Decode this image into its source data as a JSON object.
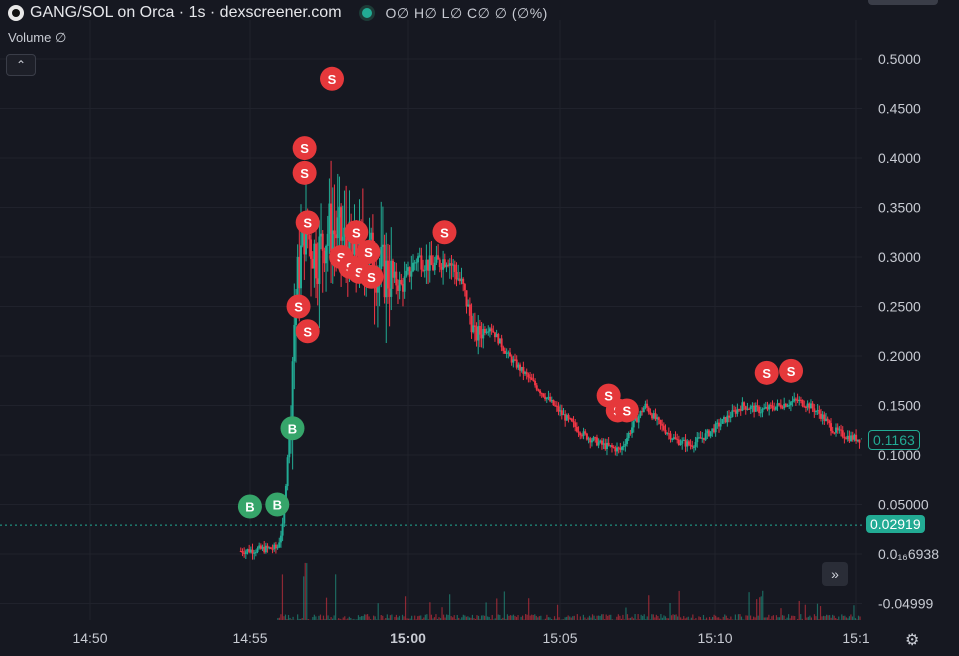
{
  "header": {
    "title": "GANG/SOL on Orca · 1s · dexscreener.com",
    "ohlc": "O∅ H∅ L∅ C∅ ∅ (∅%)"
  },
  "volume_label": "Volume ∅",
  "collapse_label": "⌃",
  "price_badges": {
    "last": "0.1163",
    "entry": "0.02919"
  },
  "nav_button": "»",
  "settings_icon": "⚙",
  "colors": {
    "up": "#22ab94",
    "down": "#f23645",
    "sell": "#e5383b",
    "buy": "#36a56a",
    "background": "#161821"
  },
  "chart_data": {
    "type": "candlestick",
    "y_ticks": [
      "0.5000",
      "0.4500",
      "0.4000",
      "0.3500",
      "0.3000",
      "0.2500",
      "0.2000",
      "0.1500",
      "0.1000",
      "0.05000",
      "0.0₁₆6938",
      "-0.04999"
    ],
    "y_tick_values": [
      0.5,
      0.45,
      0.4,
      0.35,
      0.3,
      0.25,
      0.2,
      0.15,
      0.1,
      0.05,
      0.0,
      -0.05
    ],
    "x_ticks": [
      "14:50",
      "14:55",
      "15:00",
      "15:05",
      "15:10",
      "15:1"
    ],
    "ylim": [
      -0.06,
      0.56
    ],
    "xlim_minutes": [
      -6.4,
      15.0
    ],
    "price_path": [
      {
        "t": -5.5,
        "p": 0.003
      },
      {
        "t": -4.8,
        "p": 0.005
      },
      {
        "t": -4.3,
        "p": 0.006
      },
      {
        "t": -4.1,
        "p": 0.03
      },
      {
        "t": -3.9,
        "p": 0.13
      },
      {
        "t": -3.7,
        "p": 0.26
      },
      {
        "t": -3.4,
        "p": 0.33
      },
      {
        "t": -3.0,
        "p": 0.3
      },
      {
        "t": -2.6,
        "p": 0.33
      },
      {
        "t": -2.2,
        "p": 0.32
      },
      {
        "t": -1.8,
        "p": 0.3
      },
      {
        "t": -1.4,
        "p": 0.31
      },
      {
        "t": -1.0,
        "p": 0.29
      },
      {
        "t": -0.6,
        "p": 0.28
      },
      {
        "t": -0.2,
        "p": 0.27
      },
      {
        "t": 0.3,
        "p": 0.3
      },
      {
        "t": 0.8,
        "p": 0.29
      },
      {
        "t": 1.3,
        "p": 0.3
      },
      {
        "t": 1.8,
        "p": 0.27
      },
      {
        "t": 2.2,
        "p": 0.22
      },
      {
        "t": 2.7,
        "p": 0.23
      },
      {
        "t": 3.3,
        "p": 0.2
      },
      {
        "t": 3.9,
        "p": 0.18
      },
      {
        "t": 4.5,
        "p": 0.16
      },
      {
        "t": 5.1,
        "p": 0.14
      },
      {
        "t": 5.8,
        "p": 0.12
      },
      {
        "t": 6.4,
        "p": 0.11
      },
      {
        "t": 7.0,
        "p": 0.105
      },
      {
        "t": 7.4,
        "p": 0.13
      },
      {
        "t": 7.8,
        "p": 0.15
      },
      {
        "t": 8.3,
        "p": 0.13
      },
      {
        "t": 8.8,
        "p": 0.115
      },
      {
        "t": 9.3,
        "p": 0.11
      },
      {
        "t": 9.8,
        "p": 0.12
      },
      {
        "t": 10.4,
        "p": 0.135
      },
      {
        "t": 11.0,
        "p": 0.15
      },
      {
        "t": 11.6,
        "p": 0.145
      },
      {
        "t": 12.2,
        "p": 0.15
      },
      {
        "t": 12.8,
        "p": 0.155
      },
      {
        "t": 13.2,
        "p": 0.15
      },
      {
        "t": 13.6,
        "p": 0.14
      },
      {
        "t": 14.0,
        "p": 0.125
      },
      {
        "t": 14.5,
        "p": 0.118
      },
      {
        "t": 14.9,
        "p": 0.116
      }
    ],
    "trade_markers": [
      {
        "type": "S",
        "t": -2.5,
        "p": 0.48
      },
      {
        "type": "S",
        "t": -3.4,
        "p": 0.41
      },
      {
        "type": "S",
        "t": -3.4,
        "p": 0.385
      },
      {
        "type": "S",
        "t": -3.3,
        "p": 0.335
      },
      {
        "type": "S",
        "t": -1.7,
        "p": 0.325
      },
      {
        "type": "S",
        "t": -2.2,
        "p": 0.3
      },
      {
        "type": "S",
        "t": -1.9,
        "p": 0.29
      },
      {
        "type": "S",
        "t": -1.6,
        "p": 0.285
      },
      {
        "type": "S",
        "t": -1.3,
        "p": 0.305
      },
      {
        "type": "S",
        "t": -1.2,
        "p": 0.28
      },
      {
        "type": "S",
        "t": 1.2,
        "p": 0.325
      },
      {
        "type": "S",
        "t": -3.6,
        "p": 0.25
      },
      {
        "type": "S",
        "t": -3.3,
        "p": 0.225
      },
      {
        "type": "S",
        "t": 6.6,
        "p": 0.16
      },
      {
        "type": "S",
        "t": 6.9,
        "p": 0.145
      },
      {
        "type": "S",
        "t": 7.2,
        "p": 0.145
      },
      {
        "type": "S",
        "t": 11.8,
        "p": 0.183
      },
      {
        "type": "S",
        "t": 12.6,
        "p": 0.185
      },
      {
        "type": "B",
        "t": -3.8,
        "p": 0.127
      },
      {
        "type": "B",
        "t": -5.2,
        "p": 0.048
      },
      {
        "type": "B",
        "t": -4.3,
        "p": 0.05
      }
    ],
    "last_price": 0.1163,
    "entry_price": 0.02919
  }
}
